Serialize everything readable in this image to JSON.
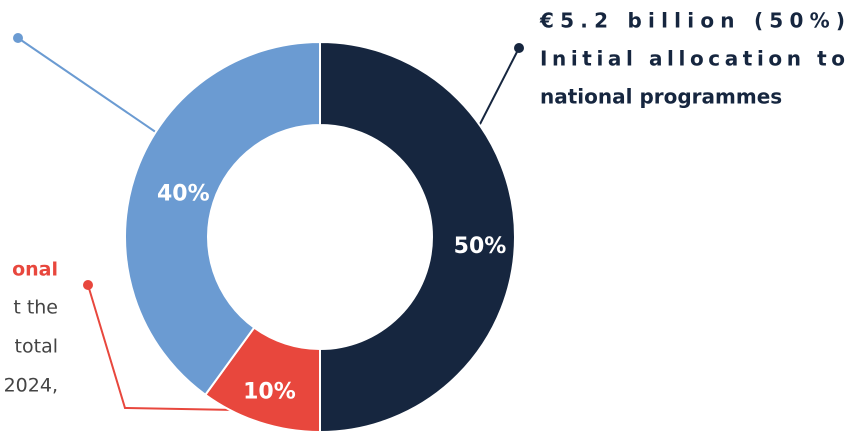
{
  "chart_data": {
    "type": "pie",
    "categories": [
      null,
      null,
      null
    ],
    "values": [
      50,
      10,
      40
    ],
    "value_labels": [
      "50%",
      "10%",
      "40%"
    ],
    "colors": [
      "#16263f",
      "#e8473d",
      "#6b9bd2"
    ],
    "annotations": {
      "right": [
        "€5.2 billion (50%)",
        "Initial allocation to",
        "national programmes"
      ],
      "left_heading": "onal",
      "left_lines": [
        "t the",
        "total",
        "2024,"
      ]
    }
  }
}
